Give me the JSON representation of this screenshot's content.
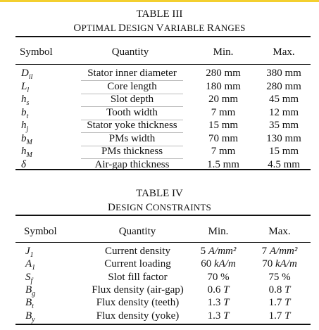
{
  "table3": {
    "number": "TABLE III",
    "title_lead": "O",
    "title_rest": "PTIMAL ",
    "title_lead2": "D",
    "title_rest2": "ESIGN ",
    "title_lead3": "V",
    "title_rest3": "ARIABLE ",
    "title_lead4": "R",
    "title_rest4": "ANGES",
    "headers": {
      "symbol": "Symbol",
      "quantity": "Quantity",
      "min": "Min.",
      "max": "Max."
    },
    "rows": [
      {
        "sym": "D",
        "sub": "il",
        "quantity": "Stator inner diameter",
        "min": "280 mm",
        "max": "380 mm"
      },
      {
        "sym": "L",
        "sub": "l",
        "quantity": "Core length",
        "min": "180 mm",
        "max": "280 mm"
      },
      {
        "sym": "h",
        "sub": "s",
        "quantity": "Slot depth",
        "min": "20 mm",
        "max": "45 mm"
      },
      {
        "sym": "b",
        "sub": "t",
        "quantity": "Tooth width",
        "min": "7 mm",
        "max": "12 mm"
      },
      {
        "sym": "h",
        "sub": "j",
        "quantity": "Stator yoke thickness",
        "min": "15 mm",
        "max": "35 mm"
      },
      {
        "sym": "b",
        "sub": "M",
        "quantity": "PMs width",
        "min": "70 mm",
        "max": "130 mm"
      },
      {
        "sym": "h",
        "sub": "M",
        "quantity": "PMs thickness",
        "min": "7 mm",
        "max": "15 mm"
      },
      {
        "sym": "δ",
        "sub": "",
        "quantity": "Air-gap thickness",
        "min": "1.5 mm",
        "max": "4.5 mm"
      }
    ]
  },
  "table4": {
    "number": "TABLE IV",
    "title_lead": "D",
    "title_rest": "ESIGN ",
    "title_lead2": "C",
    "title_rest2": "ONSTRAINTS",
    "headers": {
      "symbol": "Symbol",
      "quantity": "Quantity",
      "min": "Min.",
      "max": "Max."
    },
    "rows": [
      {
        "sym": "J",
        "sub": "1",
        "quantity": "Current density",
        "min_num": "5 ",
        "min_unit": "A/mm²",
        "max_num": "7 ",
        "max_unit": "A/mm²"
      },
      {
        "sym": "A",
        "sub": "1",
        "quantity": "Current loading",
        "min_num": "60 ",
        "min_unit": "kA/m",
        "max_num": "70 ",
        "max_unit": "kA/m"
      },
      {
        "sym": "S",
        "sub": "f",
        "quantity": "Slot fill factor",
        "min_num": "70 %",
        "min_unit": "",
        "max_num": "75 %",
        "max_unit": ""
      },
      {
        "sym": "B",
        "sub": "g",
        "quantity": "Flux density (air-gap)",
        "min_num": "0.6 ",
        "min_unit": "T",
        "max_num": "0.8 ",
        "max_unit": "T"
      },
      {
        "sym": "B",
        "sub": "t",
        "quantity": "Flux density (teeth)",
        "min_num": "1.3 ",
        "min_unit": "T",
        "max_num": "1.7 ",
        "max_unit": "T"
      },
      {
        "sym": "B",
        "sub": "y",
        "quantity": "Flux density (yoke)",
        "min_num": "1.3 ",
        "min_unit": "T",
        "max_num": "1.7 ",
        "max_unit": "T"
      }
    ]
  },
  "colors": {
    "top_bar": "#f3cf2f",
    "text": "#111111"
  }
}
